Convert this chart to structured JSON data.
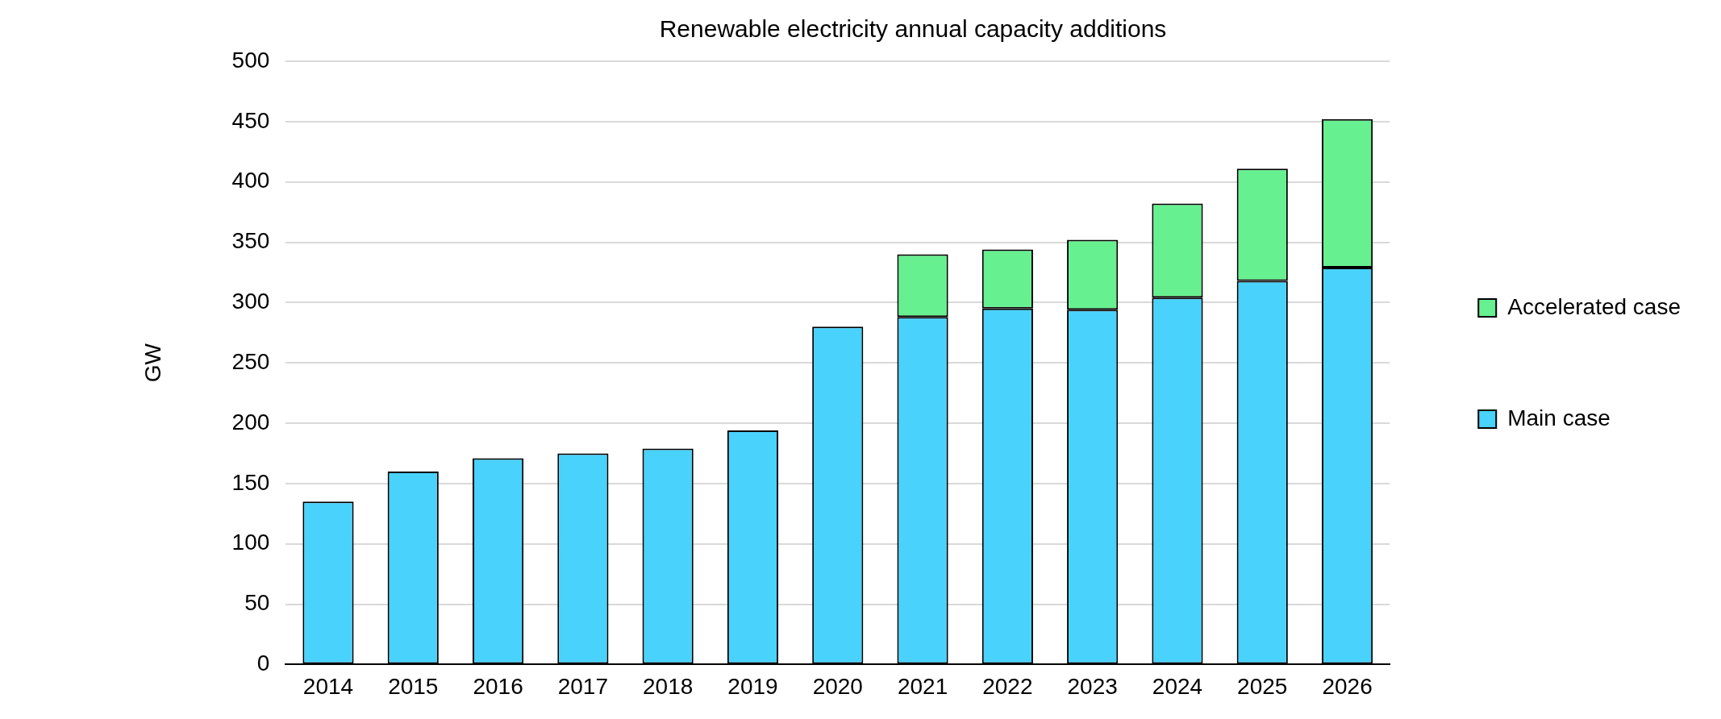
{
  "chart_data": {
    "type": "bar",
    "title": "Renewable electricity annual capacity additions",
    "ylabel": "GW",
    "categories": [
      "2014",
      "2015",
      "2016",
      "2017",
      "2018",
      "2019",
      "2020",
      "2021",
      "2022",
      "2023",
      "2024",
      "2025",
      "2026"
    ],
    "series": [
      {
        "name": "Main case",
        "color": "#48d2fc",
        "values": [
          135,
          160,
          171,
          175,
          179,
          194,
          280,
          288,
          295,
          294,
          304,
          318,
          329
        ]
      },
      {
        "name": "Accelerated case",
        "color": "#66f08f",
        "values": [
          null,
          null,
          null,
          null,
          null,
          null,
          null,
          52,
          49,
          58,
          78,
          93,
          123
        ]
      }
    ],
    "stacked": true,
    "ylim": [
      0,
      500
    ],
    "yticks": [
      0,
      50,
      100,
      150,
      200,
      250,
      300,
      350,
      400,
      450,
      500
    ],
    "grid": "y",
    "legend": "right"
  }
}
